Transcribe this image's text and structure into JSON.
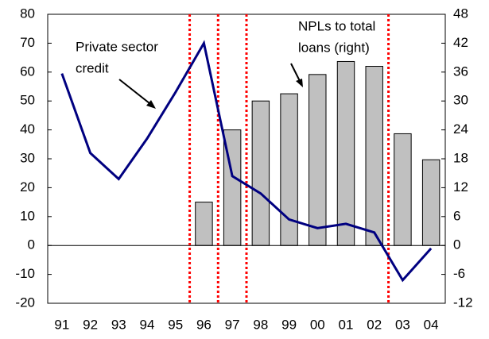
{
  "chart_data": {
    "type": "bar_line",
    "categories": [
      "91",
      "92",
      "93",
      "94",
      "95",
      "96",
      "97",
      "98",
      "99",
      "00",
      "01",
      "02",
      "03",
      "04"
    ],
    "series": [
      {
        "label": [
          "Private sector",
          "credit"
        ],
        "type": "line",
        "color": "#000080",
        "values": [
          59.5,
          32,
          23,
          37,
          53,
          70,
          24,
          18,
          9,
          6,
          7.5,
          4.5,
          -12,
          -1
        ]
      },
      {
        "label": [
          "NPLs to total",
          "loans (right)"
        ],
        "type": "bar",
        "axis": "y2",
        "color": "#c0c0c0",
        "values": [
          null,
          null,
          null,
          null,
          null,
          9,
          24,
          30,
          31.5,
          35.5,
          38.2,
          37.2,
          23.2,
          17.8
        ]
      }
    ],
    "ylim": [
      -20,
      80
    ],
    "yticks": [
      -20,
      -10,
      0,
      10,
      20,
      30,
      40,
      50,
      60,
      70,
      80
    ],
    "y2lim": [
      -12,
      48
    ],
    "y2ticks": [
      -12,
      -6,
      0,
      6,
      12,
      18,
      24,
      30,
      36,
      42,
      48
    ],
    "highlight_lines": [
      "96",
      "97",
      "98",
      "03"
    ],
    "highlight_color": "#ff0000"
  }
}
